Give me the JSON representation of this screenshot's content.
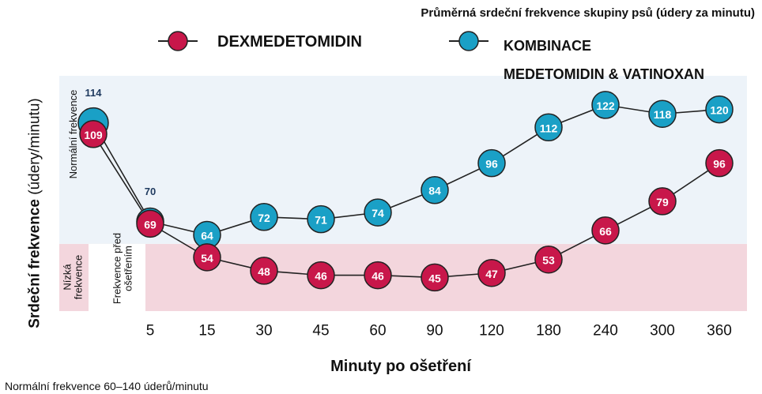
{
  "chart_data": {
    "type": "line",
    "title": "Průměrná srdeční frekvence skupiny psů (údery za minutu)",
    "y_label": "Srdeční frekvence",
    "y_label_unit": "(údery/minutu)",
    "x_label": "Minuty po ošetření",
    "footnote": "Normální frekvence 60–140 úderů/minutu",
    "pre_treatment_label": "Frekvence před\nošetřením",
    "categories": [
      null,
      "5",
      "15",
      "30",
      "45",
      "60",
      "90",
      "120",
      "180",
      "240",
      "300",
      "360"
    ],
    "series": [
      {
        "name": "DEXMEDETOMIDIN",
        "color": "#c8174a",
        "values": [
          109,
          69,
          54,
          48,
          46,
          46,
          45,
          47,
          53,
          66,
          79,
          96
        ]
      },
      {
        "name": "KOMBINACE\nMEDETOMIDIN & VATINOXAN",
        "color": "#1aa0c6",
        "values": [
          114,
          70,
          64,
          72,
          71,
          74,
          84,
          96,
          112,
          122,
          118,
          120
        ]
      }
    ],
    "bands": [
      {
        "label": "Nízká\nfrekvence",
        "from": 30,
        "to": 60,
        "color": "#f3d6dd"
      },
      {
        "label": "Normální frekvence",
        "from": 60,
        "to": 135,
        "color": "#edf3f9"
      }
    ],
    "ylim": [
      30,
      135
    ]
  }
}
